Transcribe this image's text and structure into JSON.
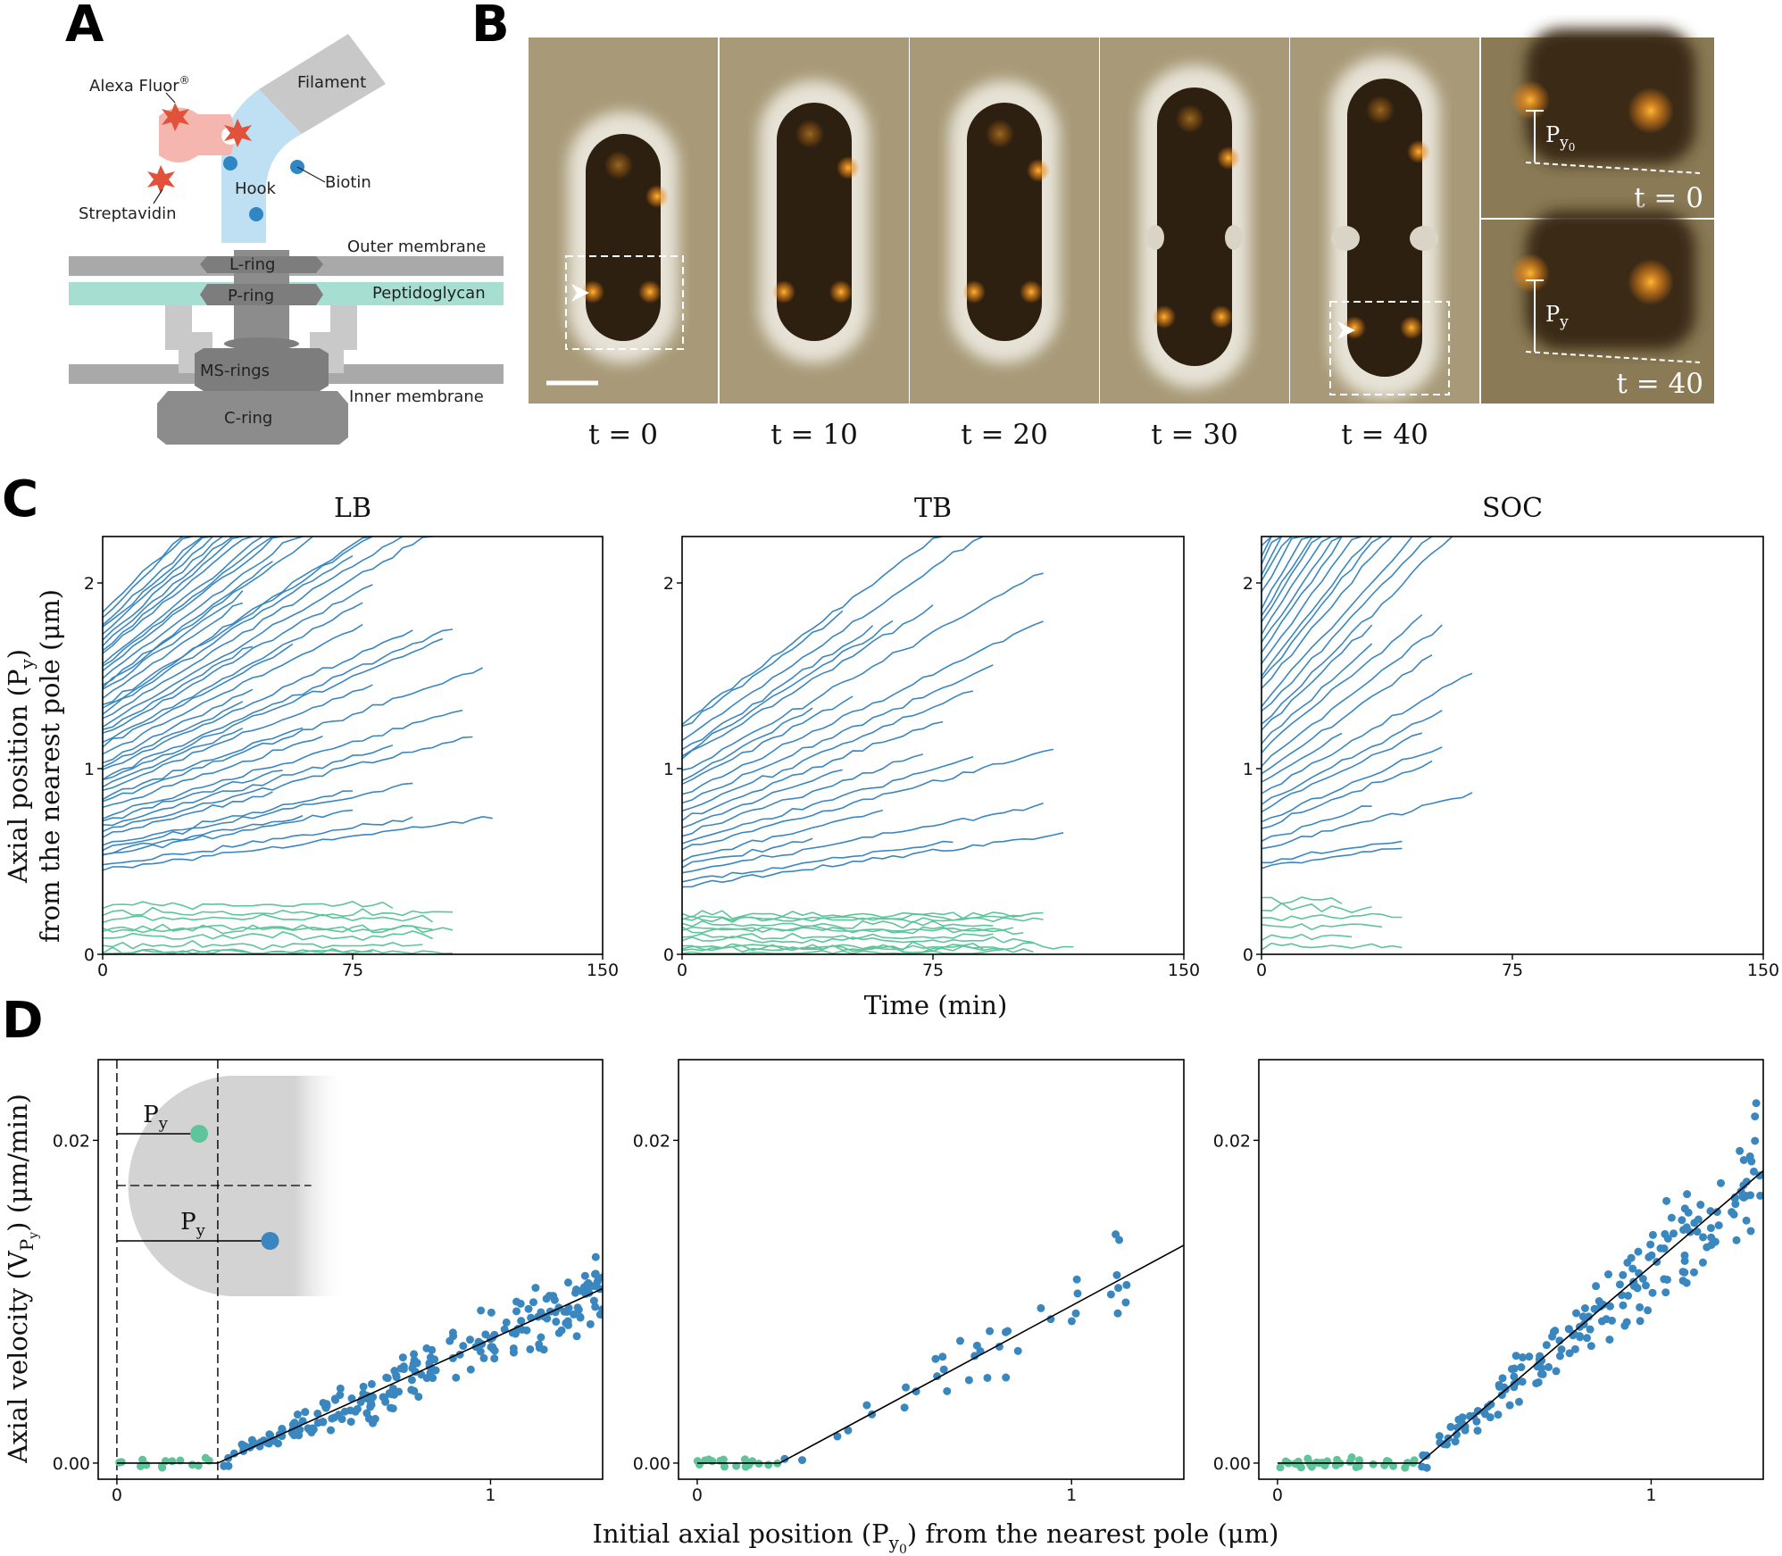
{
  "panel_letters": {
    "a": "A",
    "b": "B",
    "c": "C",
    "d": "D"
  },
  "colors": {
    "blue": "#3a87c0",
    "green": "#5ec49a",
    "hook": "#bfe0f3",
    "filament": "#c8c8c8",
    "membrane": "#a9a9a9",
    "peptidoglycan": "#a6ded1",
    "motor": "#8c8c8c",
    "streptavidin": "#f4b6ae",
    "alexa": "#e0523a",
    "biotin": "#2f86c4"
  },
  "schematic": {
    "labels": {
      "filament": "Filament",
      "alexa": "Alexa Fluor",
      "alexa_sup": "®",
      "biotin": "Biotin",
      "hook": "Hook",
      "streptavidin": "Streptavidin",
      "outer_membrane": "Outer membrane",
      "l_ring": "L-ring",
      "p_ring": "P-ring",
      "peptidoglycan": "Peptidoglycan",
      "ms_rings": "MS-rings",
      "inner_membrane": "Inner membrane",
      "c_ring": "C-ring"
    }
  },
  "micrographs": {
    "frames": [
      "t = 0",
      "t = 10",
      "t = 20",
      "t = 30",
      "t = 40"
    ],
    "inset_top": {
      "time": "t = 0",
      "label": "P",
      "sub": "y",
      "subsub": "0"
    },
    "inset_bottom": {
      "time": "t = 40",
      "label": "P",
      "sub": "y"
    }
  },
  "panelC": {
    "ylabel_line1": "Axial position (P",
    "ylabel_sub": "y",
    "ylabel_end": ")",
    "ylabel_line2": "from the nearest pole (μm)",
    "xlabel": "Time (min)"
  },
  "panelD": {
    "ylabel_pre": "Axial velocity (V",
    "ylabel_sub": "P",
    "ylabel_subsub": "y",
    "ylabel_post": ") (μm/min)",
    "xlabel_pre": "Initial axial position (P",
    "xlabel_sub": "y",
    "xlabel_subsub": "0",
    "xlabel_post": ") from the nearest pole (μm)",
    "inset_label": "P",
    "inset_sub": "y"
  },
  "chart_data": [
    {
      "type": "line",
      "panel": "C",
      "title": "LB",
      "xlabel": "Time (min)",
      "ylabel": "Axial position (Py) from the nearest pole (μm)",
      "xlim": [
        0,
        150
      ],
      "ylim": [
        0,
        2.25
      ],
      "xticks": [
        0,
        75,
        150
      ],
      "yticks": [
        0,
        1,
        2
      ],
      "series": [
        {
          "group": "blue",
          "n": 48,
          "start_range_um": [
            0.45,
            1.85
          ],
          "end_min_range": [
            40,
            120
          ]
        },
        {
          "group": "green",
          "n": 9,
          "start_range_um": [
            0.0,
            0.25
          ],
          "end_min_range": [
            80,
            120
          ]
        }
      ]
    },
    {
      "type": "line",
      "panel": "C",
      "title": "TB",
      "xlabel": "Time (min)",
      "xlim": [
        0,
        150
      ],
      "ylim": [
        0,
        2.25
      ],
      "xticks": [
        0,
        75,
        150
      ],
      "yticks": [
        0,
        1,
        2
      ],
      "series": [
        {
          "group": "blue",
          "n": 22,
          "start_range_um": [
            0.35,
            1.25
          ],
          "end_min_range": [
            40,
            120
          ]
        },
        {
          "group": "green",
          "n": 12,
          "start_range_um": [
            0.0,
            0.22
          ],
          "end_min_range": [
            80,
            120
          ]
        }
      ]
    },
    {
      "type": "line",
      "panel": "C",
      "title": "SOC",
      "xlabel": "Time (min)",
      "xlim": [
        0,
        150
      ],
      "ylim": [
        0,
        2.25
      ],
      "xticks": [
        0,
        75,
        150
      ],
      "yticks": [
        0,
        1,
        2
      ],
      "series": [
        {
          "group": "blue",
          "n": 34,
          "start_range_um": [
            0.45,
            2.2
          ],
          "end_min_range": [
            25,
            65
          ]
        },
        {
          "group": "green",
          "n": 6,
          "start_range_um": [
            0.05,
            0.3
          ],
          "end_min_range": [
            20,
            45
          ]
        }
      ]
    },
    {
      "type": "scatter",
      "panel": "D",
      "title": "LB",
      "xlabel": "Initial axial position (Py0) from the nearest pole (μm)",
      "ylabel": "Axial velocity (VPy) (μm/min)",
      "xlim": [
        -0.05,
        1.3
      ],
      "ylim": [
        -0.001,
        0.025
      ],
      "xticks": [
        0,
        1
      ],
      "yticks": [
        0.0,
        0.02
      ],
      "ytick_labels": [
        "0.00",
        "0.02"
      ],
      "fit": {
        "threshold_um": 0.27,
        "slope": 0.0105
      },
      "dividers_um": [
        0,
        0.27
      ],
      "points": {
        "blue_n": 230,
        "green_n": 14,
        "x_range_blue": [
          0.27,
          1.3
        ],
        "x_range_green": [
          0,
          0.27
        ]
      }
    },
    {
      "type": "scatter",
      "panel": "D",
      "title": "TB",
      "xlim": [
        -0.05,
        1.3
      ],
      "ylim": [
        -0.001,
        0.025
      ],
      "xticks": [
        0,
        1
      ],
      "yticks": [
        0.0,
        0.02
      ],
      "ytick_labels": [
        "0.00",
        "0.02"
      ],
      "fit": {
        "threshold_um": 0.22,
        "slope": 0.0125
      },
      "points": {
        "blue_n": 40,
        "green_n": 16,
        "x_range_blue": [
          0.22,
          1.15
        ],
        "x_range_green": [
          0,
          0.22
        ]
      }
    },
    {
      "type": "scatter",
      "panel": "D",
      "title": "SOC",
      "xlim": [
        -0.05,
        1.3
      ],
      "ylim": [
        -0.001,
        0.025
      ],
      "xticks": [
        0,
        1
      ],
      "yticks": [
        0.0,
        0.02
      ],
      "ytick_labels": [
        "0.00",
        "0.02"
      ],
      "fit": {
        "threshold_um": 0.38,
        "slope": 0.0197
      },
      "points": {
        "blue_n": 190,
        "green_n": 35,
        "x_range_blue": [
          0.38,
          1.3
        ],
        "x_range_green": [
          0,
          0.38
        ]
      }
    }
  ]
}
